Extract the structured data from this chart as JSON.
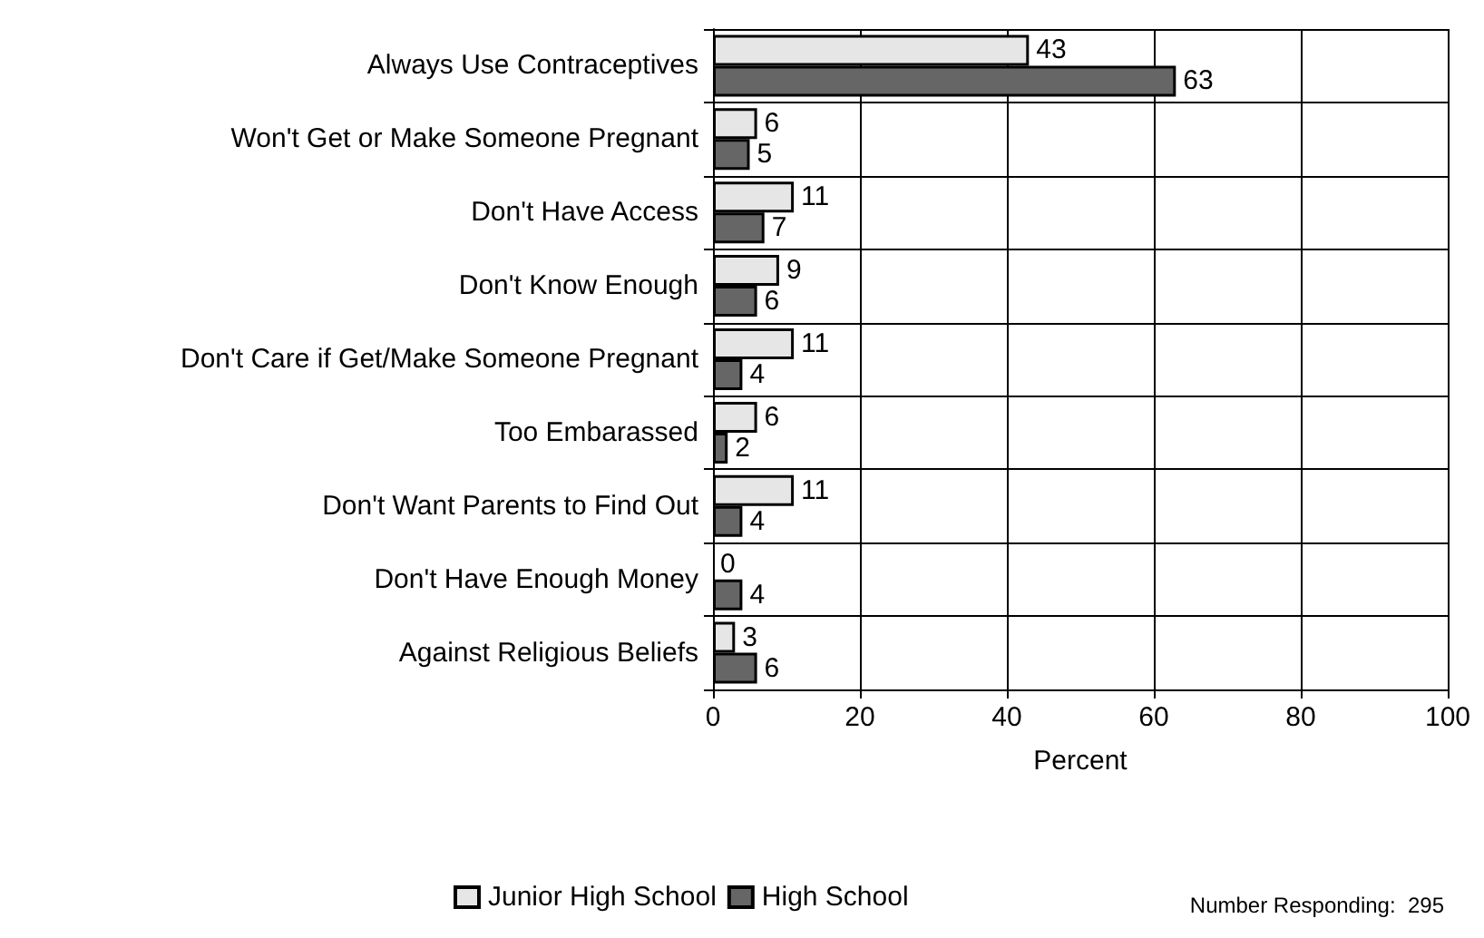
{
  "chart_data": {
    "type": "bar",
    "orientation": "horizontal",
    "xlabel": "Percent",
    "categories": [
      "Always Use Contraceptives",
      "Won't Get or Make Someone Pregnant",
      "Don't Have Access",
      "Don't Know Enough",
      "Don't Care if Get/Make Someone Pregnant",
      "Too Embarassed",
      "Don't Want Parents to Find Out",
      "Don't Have Enough Money",
      "Against Religious Beliefs"
    ],
    "series": [
      {
        "name": "Junior High School",
        "color": "#e6e6e6",
        "values": [
          43,
          6,
          11,
          9,
          11,
          6,
          11,
          0,
          3
        ]
      },
      {
        "name": "High School",
        "color": "#666666",
        "values": [
          63,
          5,
          7,
          6,
          4,
          2,
          4,
          4,
          6
        ]
      }
    ],
    "xlim": [
      0,
      100
    ],
    "xticks": [
      0,
      20,
      40,
      60,
      80,
      100
    ],
    "grid": true,
    "legend": "bottom",
    "data_labels": true,
    "annotations": [
      "Number Responding:  295"
    ]
  }
}
